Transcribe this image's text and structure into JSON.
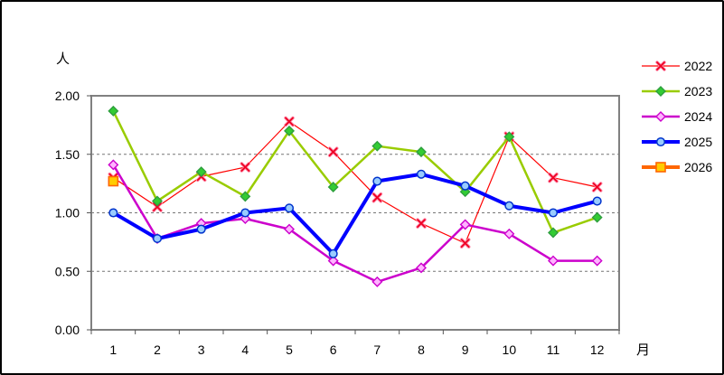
{
  "chart": {
    "y_axis_unit": "人",
    "x_axis_unit": "月",
    "y_tick_labels": [
      "0.00",
      "0.50",
      "1.00",
      "1.50",
      "2.00"
    ]
  },
  "chart_data": {
    "type": "line",
    "title": "",
    "xlabel": "月",
    "ylabel": "人",
    "categories": [
      "1",
      "2",
      "3",
      "4",
      "5",
      "6",
      "7",
      "8",
      "9",
      "10",
      "11",
      "12"
    ],
    "ylim": [
      0,
      2.0
    ],
    "y_tick_step": 0.5,
    "grid": "horizontal-dashed",
    "legend_position": "right",
    "series": [
      {
        "name": "2022",
        "color": "#FF0000",
        "line_width": 1.2,
        "marker": "x",
        "marker_fill": "#FF8FAE",
        "marker_stroke": "#EE0022",
        "values": [
          1.3,
          1.05,
          1.31,
          1.39,
          1.78,
          1.52,
          1.13,
          0.91,
          0.74,
          1.65,
          1.3,
          1.22
        ]
      },
      {
        "name": "2023",
        "color": "#99CC00",
        "line_width": 2.5,
        "marker": "diamond",
        "marker_fill": "#33CC33",
        "marker_stroke": "#2E9E3E",
        "values": [
          1.87,
          1.1,
          1.35,
          1.14,
          1.7,
          1.22,
          1.57,
          1.52,
          1.18,
          1.65,
          0.83,
          0.96
        ]
      },
      {
        "name": "2024",
        "color": "#CC00CC",
        "line_width": 2.5,
        "marker": "diamond-open",
        "marker_fill": "#FFB3FF",
        "marker_stroke": "#CC00CC",
        "values": [
          1.41,
          0.78,
          0.91,
          0.95,
          0.86,
          0.59,
          0.41,
          0.53,
          0.9,
          0.82,
          0.59,
          0.59
        ]
      },
      {
        "name": "2025",
        "color": "#0000FF",
        "line_width": 4,
        "marker": "circle",
        "marker_fill": "#99CCFF",
        "marker_stroke": "#0033CC",
        "values": [
          1.0,
          0.78,
          0.86,
          1.0,
          1.04,
          0.65,
          1.27,
          1.33,
          1.23,
          1.06,
          1.0,
          1.1
        ]
      },
      {
        "name": "2026",
        "color": "#FF6600",
        "line_width": 4,
        "marker": "square",
        "marker_fill": "#FFCC00",
        "marker_stroke": "#FF6600",
        "values": [
          1.27,
          null,
          null,
          null,
          null,
          null,
          null,
          null,
          null,
          null,
          null,
          null
        ]
      }
    ]
  }
}
